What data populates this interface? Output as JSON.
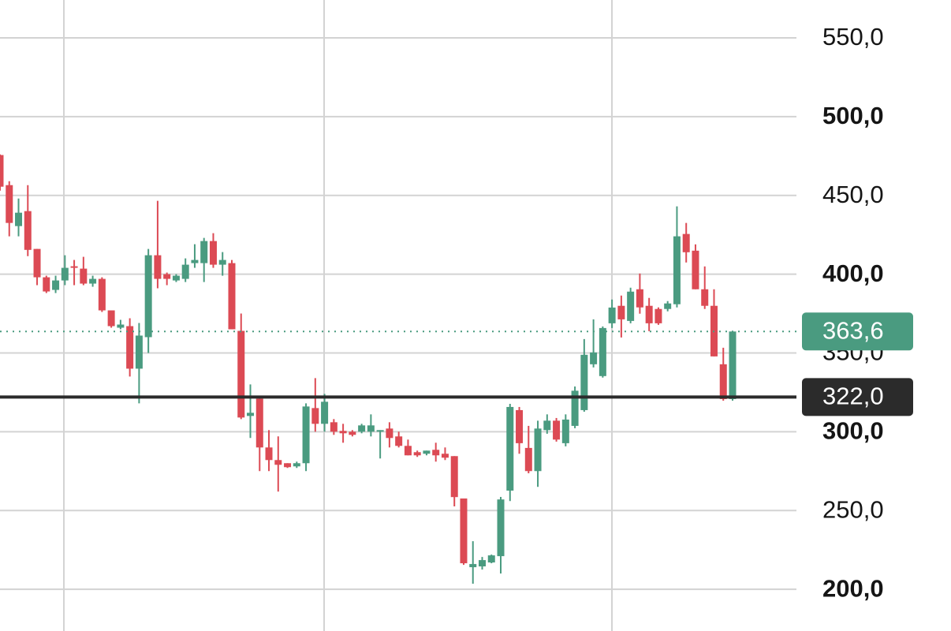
{
  "chart_data": {
    "type": "candlestick",
    "open": [
      475.6,
      456.5,
      430.5,
      440,
      416,
      398,
      390,
      396,
      405,
      403.5,
      394,
      397,
      377,
      366,
      367,
      340,
      360,
      412,
      400,
      396,
      397,
      407,
      407,
      421,
      406,
      407,
      364,
      310,
      321,
      290,
      282,
      280,
      278,
      280,
      315,
      305,
      306,
      300.5,
      300,
      300,
      300,
      300,
      302,
      297,
      291,
      287,
      286,
      288.5,
      286,
      284.5,
      257.6,
      214,
      214.5,
      217,
      221,
      262.6,
      313.7,
      289.7,
      275,
      301,
      307,
      292.7,
      303.7,
      313.7,
      342.8,
      335.3,
      368.8,
      379.9,
      370.3,
      390.4,
      379.9,
      377.9,
      377.9,
      380.9,
      425.5,
      414.9,
      390.4,
      379.9,
      342.8,
      320.7
    ],
    "high": [
      476,
      459,
      448,
      456.5,
      416,
      399,
      399,
      412,
      409,
      411,
      399,
      398,
      377,
      371,
      372,
      369,
      416,
      446.5,
      401,
      400,
      410,
      419,
      423,
      426,
      414,
      409,
      375,
      330,
      322,
      301,
      297,
      280,
      281,
      318,
      334,
      324,
      308,
      305,
      301,
      305,
      311,
      301,
      306,
      300,
      295,
      288,
      288,
      293,
      290,
      284.5,
      257.6,
      230.5,
      220.5,
      222,
      258.6,
      317.7,
      315.7,
      303.7,
      307,
      311,
      308.7,
      311,
      328.7,
      358.8,
      371.3,
      366.8,
      383.9,
      386.4,
      391.4,
      400.4,
      384.9,
      378.9,
      382.9,
      443,
      432.5,
      418.9,
      404.9,
      390.4,
      353.3,
      363.6
    ],
    "low": [
      453,
      424,
      424,
      411.4,
      393,
      388,
      388,
      393,
      393,
      393,
      392,
      376,
      366,
      365,
      335,
      318,
      350,
      391,
      393,
      395,
      395,
      404,
      395,
      404,
      399,
      365,
      308,
      296,
      275,
      275,
      262,
      277,
      277,
      275,
      300,
      300,
      298,
      293,
      297,
      299,
      297,
      283,
      290,
      290,
      285,
      284,
      285,
      281,
      282,
      252.6,
      215.5,
      203.5,
      212.5,
      216.5,
      210,
      256,
      286,
      273.6,
      265,
      298.7,
      293.7,
      290.7,
      302.2,
      312.7,
      340.8,
      334.3,
      365.8,
      359.8,
      368.8,
      374.9,
      363.8,
      367.8,
      376.4,
      378.9,
      407.4,
      390.4,
      377.9,
      347.8,
      319.7,
      319.7
    ],
    "close": [
      455.5,
      432.5,
      439,
      415.4,
      398,
      389,
      396,
      404,
      404,
      394,
      397,
      377,
      367,
      368,
      340,
      361,
      412,
      397,
      397,
      399,
      406,
      409,
      421,
      406,
      409,
      365,
      309,
      312,
      290,
      282,
      279,
      277.5,
      280,
      316,
      305,
      319,
      300,
      299,
      298,
      304,
      304,
      301,
      296,
      291,
      285,
      285,
      288,
      285,
      283.5,
      258.5,
      216.5,
      216,
      218.5,
      221.5,
      257,
      315.7,
      292.7,
      275,
      302,
      307,
      295,
      307.7,
      326,
      348.8,
      350.3,
      365.8,
      378.8,
      371.3,
      388.9,
      378.9,
      368.8,
      368.8,
      381.4,
      424,
      413.9,
      390.4,
      379.9,
      347.8,
      320.7,
      363.6
    ],
    "up_color": "#4a9b80",
    "down_color": "#dc4a54",
    "ylim": [
      173.5,
      574
    ],
    "yticks": [
      {
        "value": 550,
        "label": "550,0"
      },
      {
        "value": 500,
        "label": "500,0"
      },
      {
        "value": 450,
        "label": "450,0"
      },
      {
        "value": 400,
        "label": "400,0"
      },
      {
        "value": 350,
        "label": "350,0"
      },
      {
        "value": 300,
        "label": "300,0"
      },
      {
        "value": 250,
        "label": "250,0"
      },
      {
        "value": 200,
        "label": "200,0"
      }
    ],
    "grid": true,
    "price_lines": [
      {
        "value": 322,
        "label": "322,0",
        "color": "#2b2b2b",
        "style": "solid"
      },
      {
        "value": 363.6,
        "label": "363,6",
        "color": "#4a9b80",
        "style": "dotted"
      }
    ]
  }
}
